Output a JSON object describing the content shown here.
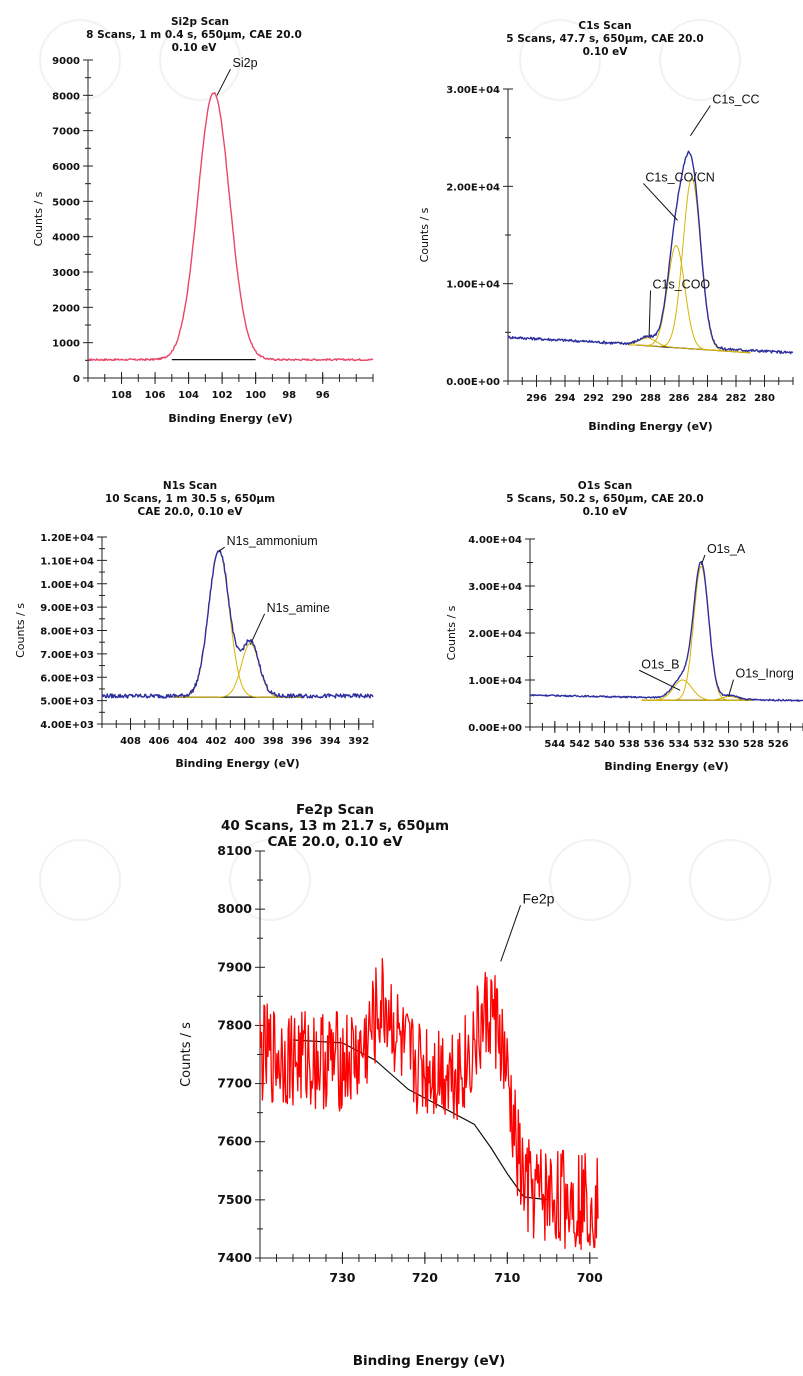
{
  "chart_data": [
    {
      "id": "si2p",
      "type": "line",
      "title": "Si2p Scan",
      "subtitle_lines": [
        "8 Scans,  1 m 0.4 s,  650µm,  CAE  20.0",
        "0.10 eV"
      ],
      "xlabel": "Binding Energy (eV)",
      "ylabel": "Counts / s",
      "xlim": [
        110,
        93
      ],
      "ylim": [
        0,
        9000
      ],
      "x_ticks": [
        108,
        106,
        104,
        102,
        100,
        98,
        96
      ],
      "y_ticks": [
        0,
        1000,
        2000,
        3000,
        4000,
        5000,
        6000,
        7000,
        8000,
        9000
      ],
      "y_tick_labels": [
        "0",
        "1000",
        "2000",
        "3000",
        "4000",
        "5000",
        "6000",
        "7000",
        "8000",
        "9000"
      ],
      "background": {
        "x": [
          105,
          100
        ],
        "y": [
          520,
          520
        ]
      },
      "series": [
        {
          "kind": "spectrum",
          "color": "#e8476a",
          "x_range": [
            110,
            93
          ],
          "baseline": 520,
          "peaks": [
            {
              "c": 102.5,
              "a": 7550,
              "s": 0.95
            }
          ],
          "noise": 25
        }
      ],
      "annotations": [
        {
          "text": "Si2p",
          "x": 101.5,
          "y": 8800,
          "tx": 102.3,
          "ty": 8000
        }
      ]
    },
    {
      "id": "c1s",
      "type": "line",
      "title": "C1s Scan",
      "subtitle_lines": [
        "5 Scans,  47.7 s,  650µm,  CAE  20.0",
        "0.10 eV"
      ],
      "xlabel": "Binding Energy (eV)",
      "ylabel": "Counts / s",
      "xlim": [
        298,
        278
      ],
      "ylim": [
        0,
        30000
      ],
      "x_ticks": [
        296,
        294,
        292,
        290,
        288,
        286,
        284,
        282,
        280
      ],
      "y_ticks": [
        0,
        10000,
        20000,
        30000
      ],
      "y_tick_labels": [
        "0.00E+00",
        "1.00E+04",
        "2.00E+04",
        "3.00E+04"
      ],
      "background": {
        "x": [
          289,
          281
        ],
        "y": [
          3700,
          2900
        ]
      },
      "series": [
        {
          "kind": "component",
          "color": "#d8b400",
          "x_range": [
            289.5,
            281
          ],
          "bg": [
            289,
            3700,
            281,
            2900
          ],
          "peaks": [
            {
              "c": 288.2,
              "a": 800,
              "s": 0.6
            }
          ]
        },
        {
          "kind": "component",
          "color": "#d8b400",
          "x_range": [
            289.5,
            281
          ],
          "bg": [
            289,
            3700,
            281,
            2900
          ],
          "peaks": [
            {
              "c": 286.2,
              "a": 10500,
              "s": 0.6
            }
          ]
        },
        {
          "kind": "component",
          "color": "#d8b400",
          "x_range": [
            289.5,
            281
          ],
          "bg": [
            289,
            3700,
            281,
            2900
          ],
          "peaks": [
            {
              "c": 285.1,
              "a": 17500,
              "s": 0.62
            }
          ]
        },
        {
          "kind": "spectrum",
          "color": "#2e2ea0",
          "x_range": [
            298,
            278
          ],
          "baseline": 3500,
          "slope": [
            298,
            4500,
            278,
            2900
          ],
          "peaks": [
            {
              "c": 288.2,
              "a": 800,
              "s": 0.6
            },
            {
              "c": 286.2,
              "a": 10500,
              "s": 0.6
            },
            {
              "c": 285.1,
              "a": 17500,
              "s": 0.62
            }
          ],
          "noise": 140
        }
      ],
      "annotations": [
        {
          "text": "C1s_CC",
          "x": 283.8,
          "y": 28500,
          "tx": 285.2,
          "ty": 25200
        },
        {
          "text": "C1s_CO/CN",
          "x": 288.5,
          "y": 20500,
          "tx": 286.1,
          "ty": 16500
        },
        {
          "text": "C1s_COO",
          "x": 288.0,
          "y": 9500,
          "tx": 288.1,
          "ty": 4600
        }
      ]
    },
    {
      "id": "n1s",
      "type": "line",
      "title": "N1s Scan",
      "subtitle_lines": [
        "10 Scans,  1 m 30.5 s,  650µm",
        "CAE 20.0,  0.10 eV"
      ],
      "xlabel": "Binding Energy (eV)",
      "ylabel": "Counts / s",
      "xlim": [
        410,
        391
      ],
      "ylim": [
        4000,
        12000
      ],
      "x_ticks": [
        408,
        406,
        404,
        402,
        400,
        398,
        396,
        394,
        392
      ],
      "y_ticks": [
        4000,
        5000,
        6000,
        7000,
        8000,
        9000,
        10000,
        11000,
        12000
      ],
      "y_tick_labels": [
        "4.00E+03",
        "5.00E+03",
        "6.00E+03",
        "7.00E+03",
        "8.00E+03",
        "9.00E+03",
        "1.00E+04",
        "1.10E+04",
        "1.20E+04"
      ],
      "background": {
        "x": [
          405,
          396
        ],
        "y": [
          5150,
          5150
        ]
      },
      "series": [
        {
          "kind": "component",
          "color": "#d8b400",
          "x_range": [
            405,
            396
          ],
          "bg": [
            405,
            5150,
            396,
            5150
          ],
          "peaks": [
            {
              "c": 401.8,
              "a": 6250,
              "s": 0.72
            }
          ]
        },
        {
          "kind": "component",
          "color": "#d8b400",
          "x_range": [
            405,
            396
          ],
          "bg": [
            405,
            5150,
            396,
            5150
          ],
          "peaks": [
            {
              "c": 399.6,
              "a": 2300,
              "s": 0.62
            }
          ]
        },
        {
          "kind": "spectrum",
          "color": "#2e2ea0",
          "x_range": [
            410,
            391
          ],
          "baseline": 5200,
          "peaks": [
            {
              "c": 401.8,
              "a": 6250,
              "s": 0.72
            },
            {
              "c": 399.6,
              "a": 2300,
              "s": 0.62
            }
          ],
          "noise": 90
        }
      ],
      "annotations": [
        {
          "text": "N1s_ammonium",
          "x": 401.4,
          "y": 11650,
          "tx": 401.8,
          "ty": 11400
        },
        {
          "text": "N1s_amine",
          "x": 398.6,
          "y": 8800,
          "tx": 399.6,
          "ty": 7400
        }
      ]
    },
    {
      "id": "o1s",
      "type": "line",
      "title": "O1s Scan",
      "subtitle_lines": [
        "5 Scans,  50.2 s,  650µm,  CAE  20.0",
        "0.10 eV"
      ],
      "xlabel": "Binding Energy (eV)",
      "ylabel": "Counts / s",
      "xlim": [
        546,
        524
      ],
      "ylim": [
        0,
        40000
      ],
      "x_ticks": [
        544,
        542,
        540,
        538,
        536,
        534,
        532,
        530,
        528,
        526
      ],
      "y_ticks": [
        0,
        10000,
        20000,
        30000,
        40000
      ],
      "y_tick_labels": [
        "0.00E+00",
        "1.00E+04",
        "2.00E+04",
        "3.00E+04",
        "4.00E+04"
      ],
      "background": {
        "x": [
          537,
          528
        ],
        "y": [
          5700,
          5700
        ]
      },
      "series": [
        {
          "kind": "component",
          "color": "#d8b400",
          "x_range": [
            537,
            528
          ],
          "bg": [
            537,
            5700,
            528,
            5700
          ],
          "peaks": [
            {
              "c": 533.7,
              "a": 4300,
              "s": 0.75
            }
          ]
        },
        {
          "kind": "component",
          "color": "#d8b400",
          "x_range": [
            537,
            528
          ],
          "bg": [
            537,
            5700,
            528,
            5700
          ],
          "peaks": [
            {
              "c": 532.2,
              "a": 28500,
              "s": 0.6
            }
          ]
        },
        {
          "kind": "component",
          "color": "#d8b400",
          "x_range": [
            537,
            528
          ],
          "bg": [
            537,
            5700,
            528,
            5700
          ],
          "peaks": [
            {
              "c": 529.9,
              "a": 800,
              "s": 0.6
            }
          ]
        },
        {
          "kind": "spectrum",
          "color": "#2e2ea0",
          "x_range": [
            546,
            524
          ],
          "baseline": 5800,
          "slope": [
            546,
            6800,
            524,
            5600
          ],
          "peaks": [
            {
              "c": 533.7,
              "a": 4300,
              "s": 0.75
            },
            {
              "c": 532.2,
              "a": 28500,
              "s": 0.6
            },
            {
              "c": 529.9,
              "a": 800,
              "s": 0.6
            }
          ],
          "noise": 160
        }
      ],
      "annotations": [
        {
          "text": "O1s_A",
          "x": 531.9,
          "y": 37000,
          "tx": 532.2,
          "ty": 34500
        },
        {
          "text": "O1s_B",
          "x": 537.2,
          "y": 12500,
          "tx": 533.9,
          "ty": 7800
        },
        {
          "text": "O1s_Inorg",
          "x": 529.6,
          "y": 10500,
          "tx": 530.0,
          "ty": 6500
        }
      ]
    },
    {
      "id": "fe2p",
      "type": "line",
      "title": "Fe2p Scan",
      "subtitle_lines": [
        "40 Scans,  13 m 21.7 s,  650µm",
        "CAE  20.0,  0.10 eV"
      ],
      "xlabel": "Binding Energy (eV)",
      "ylabel": "Counts / s",
      "xlim": [
        740,
        699
      ],
      "ylim": [
        7400,
        8100
      ],
      "x_ticks": [
        730,
        720,
        710,
        700
      ],
      "y_ticks": [
        7400,
        7500,
        7600,
        7700,
        7800,
        7900,
        8000,
        8100
      ],
      "y_tick_labels": [
        "7400",
        "7500",
        "7600",
        "7700",
        "7800",
        "7900",
        "8000",
        "8100"
      ],
      "background": {
        "x": [
          736.0,
          730.0,
          726.0,
          722.0,
          718.0,
          714.0,
          712.0,
          710.0,
          708.0,
          705.0
        ],
        "y": [
          7775,
          7770,
          7740,
          7690,
          7660,
          7630,
          7590,
          7545,
          7505,
          7500
        ]
      },
      "series": [
        {
          "kind": "spectrum",
          "color": "#ff0000",
          "x_range": [
            740,
            699
          ],
          "baseline": 7500,
          "slope": [
            740,
            7750,
            714,
            7720,
            708,
            7510,
            699,
            7500
          ],
          "peaks": [
            {
              "c": 725,
              "a": 100,
              "s": 1.4
            },
            {
              "c": 711.5,
              "a": 180,
              "s": 1.6
            }
          ],
          "noise": 55,
          "noisy": true
        }
      ],
      "annotations": [
        {
          "text": "Fe2p",
          "x": 708.4,
          "y": 8010,
          "tx": 710.8,
          "ty": 7910
        }
      ]
    }
  ]
}
